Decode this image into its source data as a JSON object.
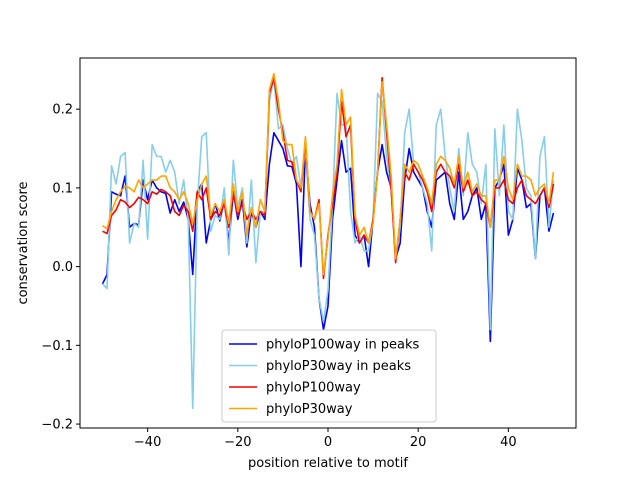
{
  "chart_data": {
    "type": "line",
    "title": "",
    "xlabel": "position relative to motif",
    "ylabel": "conservation score",
    "xlim": [
      -55,
      55
    ],
    "ylim": [
      -0.205,
      0.265
    ],
    "xticks": [
      -40,
      -20,
      0,
      20,
      40
    ],
    "xtick_labels": [
      "−40",
      "−20",
      "0",
      "20",
      "40"
    ],
    "yticks": [
      -0.2,
      -0.1,
      0.0,
      0.1,
      0.2
    ],
    "ytick_labels": [
      "−0.2",
      "−0.1",
      "0.0",
      "0.1",
      "0.2"
    ],
    "grid": false,
    "legend_position": "lower-center",
    "x_start": -50,
    "x_step": 1,
    "series": [
      {
        "name": "phyloP100way in peaks",
        "color": "#0000ff",
        "values": [
          -0.022,
          -0.01,
          0.095,
          0.092,
          0.09,
          0.115,
          0.05,
          0.055,
          0.053,
          0.11,
          0.085,
          0.11,
          0.1,
          0.095,
          0.093,
          0.068,
          0.085,
          0.07,
          0.082,
          0.06,
          -0.01,
          0.095,
          0.105,
          0.03,
          0.06,
          0.08,
          0.058,
          0.085,
          0.03,
          0.095,
          0.06,
          0.085,
          0.025,
          0.07,
          0.05,
          0.07,
          0.06,
          0.13,
          0.17,
          0.16,
          0.15,
          0.128,
          0.127,
          0.105,
          0.0,
          0.15,
          0.08,
          0.05,
          -0.04,
          -0.08,
          -0.05,
          0.06,
          0.11,
          0.16,
          0.12,
          0.125,
          0.04,
          0.03,
          0.04,
          0.0,
          0.06,
          0.12,
          0.155,
          0.12,
          0.1,
          0.01,
          0.03,
          0.11,
          0.15,
          0.12,
          0.11,
          0.1,
          0.07,
          0.05,
          0.11,
          0.115,
          0.12,
          0.08,
          0.06,
          0.12,
          0.06,
          0.07,
          0.09,
          0.1,
          0.06,
          0.08,
          -0.095,
          0.1,
          0.11,
          0.13,
          0.04,
          0.06,
          0.125,
          0.11,
          0.075,
          0.08,
          0.01,
          0.09,
          0.1,
          0.045,
          0.068
        ]
      },
      {
        "name": "phyloP30way in peaks",
        "color": "#87ceeb",
        "values": [
          -0.022,
          -0.028,
          0.128,
          0.105,
          0.14,
          0.145,
          0.03,
          0.055,
          0.05,
          0.135,
          0.035,
          0.155,
          0.14,
          0.14,
          0.12,
          0.135,
          0.12,
          0.08,
          0.11,
          0.06,
          -0.18,
          0.08,
          0.165,
          0.17,
          0.045,
          0.065,
          0.06,
          0.1,
          0.015,
          0.135,
          0.075,
          0.1,
          0.03,
          0.11,
          0.005,
          0.07,
          0.07,
          0.21,
          0.24,
          0.175,
          0.18,
          0.15,
          0.13,
          0.14,
          0.1,
          0.15,
          0.06,
          0.04,
          -0.04,
          -0.07,
          -0.03,
          0.08,
          0.22,
          0.18,
          0.18,
          0.07,
          0.03,
          0.04,
          0.02,
          0.02,
          0.06,
          0.22,
          0.21,
          0.14,
          0.1,
          0.01,
          0.05,
          0.17,
          0.2,
          0.13,
          0.12,
          0.1,
          0.08,
          0.02,
          0.18,
          0.2,
          0.14,
          0.1,
          0.07,
          0.15,
          0.09,
          0.17,
          0.13,
          0.12,
          0.08,
          0.13,
          -0.08,
          0.175,
          0.09,
          0.18,
          0.07,
          0.06,
          0.2,
          0.16,
          0.1,
          0.09,
          0.01,
          0.14,
          0.165,
          0.05,
          0.11
        ]
      },
      {
        "name": "phyloP100way",
        "color": "#ff0000",
        "values": [
          0.045,
          0.042,
          0.065,
          0.072,
          0.085,
          0.082,
          0.075,
          0.08,
          0.088,
          0.085,
          0.08,
          0.095,
          0.092,
          0.098,
          0.095,
          0.09,
          0.07,
          0.065,
          0.078,
          0.07,
          0.045,
          0.095,
          0.085,
          0.1,
          0.06,
          0.07,
          0.065,
          0.08,
          0.05,
          0.095,
          0.065,
          0.08,
          0.06,
          0.07,
          0.06,
          0.07,
          0.065,
          0.22,
          0.24,
          0.2,
          0.17,
          0.135,
          0.133,
          0.11,
          0.095,
          0.16,
          0.07,
          0.06,
          0.085,
          -0.015,
          0.04,
          0.08,
          0.12,
          0.21,
          0.165,
          0.18,
          0.06,
          0.03,
          0.04,
          0.03,
          0.06,
          0.12,
          0.24,
          0.17,
          0.1,
          0.005,
          0.06,
          0.12,
          0.11,
          0.13,
          0.12,
          0.11,
          0.095,
          0.07,
          0.12,
          0.13,
          0.12,
          0.115,
          0.1,
          0.13,
          0.095,
          0.11,
          0.09,
          0.095,
          0.085,
          0.08,
          0.05,
          0.1,
          0.1,
          0.11,
          0.085,
          0.08,
          0.1,
          0.11,
          0.09,
          0.085,
          0.08,
          0.09,
          0.1,
          0.075,
          0.105
        ]
      },
      {
        "name": "phyloP30way",
        "color": "#ffa500",
        "values": [
          0.052,
          0.048,
          0.07,
          0.085,
          0.095,
          0.102,
          0.1,
          0.095,
          0.11,
          0.1,
          0.105,
          0.11,
          0.11,
          0.115,
          0.115,
          0.1,
          0.095,
          0.085,
          0.095,
          0.08,
          0.055,
          0.085,
          0.105,
          0.115,
          0.065,
          0.08,
          0.07,
          0.085,
          0.055,
          0.105,
          0.07,
          0.095,
          0.04,
          0.075,
          0.05,
          0.085,
          0.07,
          0.225,
          0.245,
          0.21,
          0.16,
          0.155,
          0.155,
          0.11,
          0.1,
          0.165,
          0.07,
          0.06,
          0.08,
          -0.01,
          0.035,
          0.09,
          0.13,
          0.225,
          0.18,
          0.19,
          0.065,
          0.04,
          0.05,
          0.03,
          0.055,
          0.12,
          0.235,
          0.18,
          0.115,
          0.01,
          0.06,
          0.13,
          0.12,
          0.135,
          0.13,
          0.115,
          0.1,
          0.08,
          0.13,
          0.14,
          0.135,
          0.125,
          0.105,
          0.14,
          0.1,
          0.12,
          0.095,
          0.105,
          0.09,
          0.09,
          0.05,
          0.11,
          0.11,
          0.14,
          0.1,
          0.085,
          0.13,
          0.115,
          0.115,
          0.11,
          0.09,
          0.1,
          0.105,
          0.08,
          0.12
        ]
      }
    ]
  }
}
